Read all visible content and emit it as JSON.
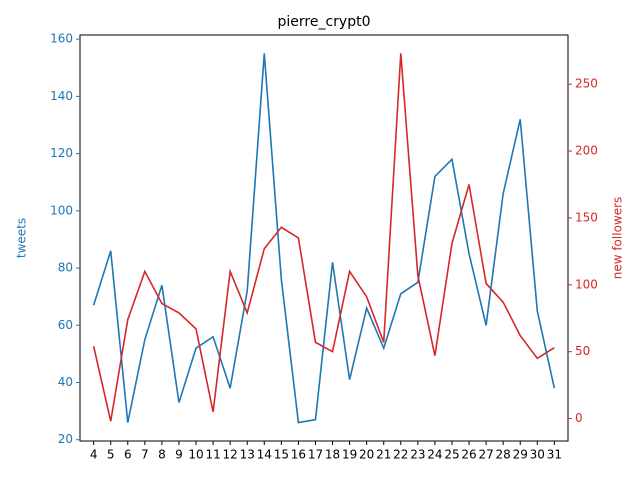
{
  "chart_data": {
    "type": "line",
    "title": "pierre_crypt0",
    "y_label": "tweets",
    "y2_label": "new followers",
    "categories": [
      "4",
      "5",
      "6",
      "7",
      "8",
      "9",
      "10",
      "11",
      "12",
      "13",
      "14",
      "15",
      "16",
      "17",
      "18",
      "19",
      "20",
      "21",
      "22",
      "23",
      "24",
      "25",
      "26",
      "27",
      "28",
      "29",
      "30",
      "31"
    ],
    "series": [
      {
        "name": "tweets",
        "color": "#1f77b4",
        "values": [
          67,
          86,
          26,
          55,
          74,
          33,
          52,
          56,
          38,
          72,
          155,
          76,
          26,
          27,
          82,
          41,
          66,
          52,
          71,
          75,
          112,
          118,
          85,
          60,
          106,
          132,
          65,
          38
        ]
      },
      {
        "name": "new followers",
        "color": "#d62728",
        "axis": "y2",
        "values": [
          54,
          -2,
          74,
          110,
          86,
          79,
          67,
          5,
          110,
          79,
          127,
          143,
          135,
          57,
          50,
          110,
          91,
          57,
          273,
          107,
          47,
          131,
          175,
          101,
          87,
          62,
          45,
          53
        ]
      }
    ],
    "ylim": [
      19.55,
      161.45
    ],
    "yticks": [
      20,
      40,
      60,
      80,
      100,
      120,
      140,
      160
    ],
    "y2lim": [
      -16.8,
      286.8
    ],
    "y2ticks": [
      0,
      50,
      100,
      150,
      200,
      250
    ]
  }
}
